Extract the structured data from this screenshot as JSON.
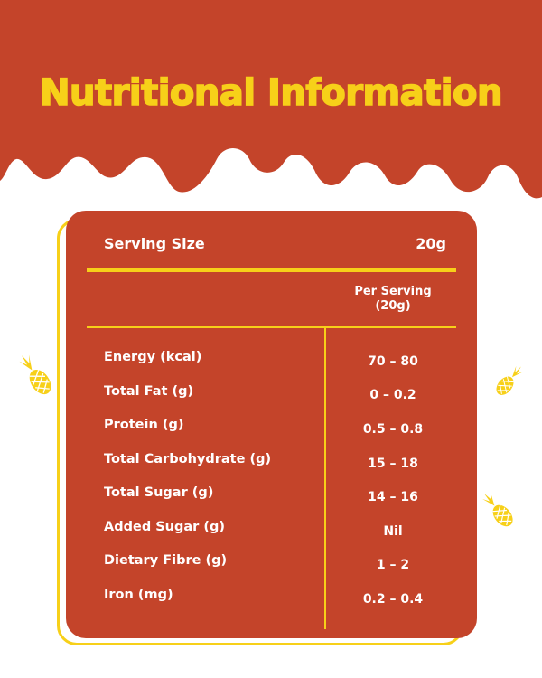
{
  "header": {
    "title": "Nutritional Information"
  },
  "colors": {
    "brand_red": "#c4442a",
    "brand_yellow": "#f7d019"
  },
  "card": {
    "serving_size_label": "Serving Size",
    "serving_size_value": "20g",
    "per_serving_line1": "Per Serving",
    "per_serving_line2": "(20g)"
  },
  "nutrients": [
    {
      "label": "Energy (kcal)",
      "value": "70 – 80"
    },
    {
      "label": "Total Fat (g)",
      "value": "0 – 0.2"
    },
    {
      "label": "Protein (g)",
      "value": "0.5 – 0.8"
    },
    {
      "label": "Total Carbohydrate (g)",
      "value": "15 – 18"
    },
    {
      "label": "Total Sugar (g)",
      "value": "14 – 16"
    },
    {
      "label": "Added Sugar (g)",
      "value": "Nil"
    },
    {
      "label": "Dietary Fibre (g)",
      "value": "1 – 2"
    },
    {
      "label": "Iron (mg)",
      "value": "0.2 – 0.4"
    }
  ],
  "decorations": {
    "icon": "pineapple-icon"
  }
}
